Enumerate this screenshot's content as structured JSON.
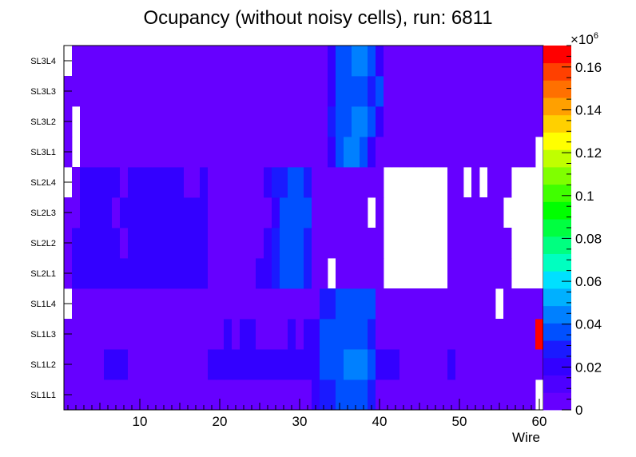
{
  "chart_data": {
    "type": "heatmap",
    "title": "Ocupancy (without noisy cells), run: 6811",
    "xlabel": "Wire",
    "ylabel": "",
    "xlim": [
      0.5,
      60.5
    ],
    "x_ticks": [
      10,
      20,
      30,
      40,
      50,
      60
    ],
    "rows": [
      "SL1L1",
      "SL1L2",
      "SL1L3",
      "SL1L4",
      "SL2L1",
      "SL2L2",
      "SL2L3",
      "SL2L4",
      "SL3L1",
      "SL3L2",
      "SL3L3",
      "SL3L4"
    ],
    "colorbar": {
      "min": 0,
      "max": 0.17,
      "exponent_label": "×10",
      "exponent_power": "6",
      "ticks": [
        0,
        0.02,
        0.04,
        0.06,
        0.08,
        0.1,
        0.12,
        0.14,
        0.16
      ],
      "tick_labels": [
        "0",
        "0.02",
        "0.04",
        "0.06",
        "0.08",
        "0.1",
        "0.12",
        "0.14",
        "0.16"
      ],
      "palette": [
        "#6600ff",
        "#4d00ff",
        "#3300ff",
        "#1a1aff",
        "#0050ff",
        "#0080ff",
        "#00b0ff",
        "#00e0ff",
        "#00ffc0",
        "#00ff80",
        "#00ff40",
        "#00ff00",
        "#40ff00",
        "#80ff00",
        "#c0ff00",
        "#ffff00",
        "#ffd000",
        "#ffa000",
        "#ff7000",
        "#ff4000",
        "#ff0000"
      ]
    },
    "legend": "colorbar-right",
    "values": [
      [
        0.008,
        0.008,
        0.008,
        0.008,
        0.008,
        0.008,
        0.008,
        0.008,
        0.008,
        0.008,
        0.008,
        0.008,
        0.008,
        0.008,
        0.008,
        0.008,
        0.008,
        0.008,
        0.008,
        0.008,
        0.008,
        0.008,
        0.008,
        0.008,
        0.008,
        0.008,
        0.008,
        0.008,
        0.008,
        0.008,
        0.008,
        0.018,
        0.025,
        0.025,
        0.035,
        0.035,
        0.035,
        0.035,
        0.025,
        0.008,
        0.008,
        0.008,
        0.008,
        0.008,
        0.008,
        0.008,
        0.008,
        0.008,
        0.008,
        0.008,
        0.008,
        0.008,
        0.008,
        0.008,
        0.008,
        0.008,
        0.008,
        0.008,
        0.008,
        0
      ],
      [
        0.008,
        0.008,
        0.008,
        0.008,
        0.008,
        0.018,
        0.018,
        0.018,
        0.008,
        0.008,
        0.008,
        0.008,
        0.008,
        0.008,
        0.008,
        0.008,
        0.008,
        0.008,
        0.018,
        0.018,
        0.018,
        0.018,
        0.018,
        0.018,
        0.018,
        0.018,
        0.018,
        0.018,
        0.018,
        0.018,
        0.018,
        0.018,
        0.035,
        0.035,
        0.035,
        0.045,
        0.045,
        0.045,
        0.035,
        0.018,
        0.018,
        0.018,
        0.008,
        0.008,
        0.008,
        0.008,
        0.008,
        0.008,
        0.018,
        0.008,
        0.008,
        0.008,
        0.008,
        0.008,
        0.008,
        0.008,
        0.008,
        0.008,
        0.008,
        0.008
      ],
      [
        0.008,
        0.008,
        0.008,
        0.008,
        0.008,
        0.008,
        0.008,
        0.008,
        0.008,
        0.008,
        0.008,
        0.008,
        0.008,
        0.008,
        0.008,
        0.008,
        0.008,
        0.008,
        0.008,
        0.008,
        0.018,
        0.008,
        0.018,
        0.018,
        0.008,
        0.008,
        0.008,
        0.008,
        0.018,
        0.008,
        0.018,
        0.018,
        0.035,
        0.035,
        0.035,
        0.035,
        0.035,
        0.035,
        0.025,
        0.008,
        0.008,
        0.008,
        0.008,
        0.008,
        0.008,
        0.008,
        0.008,
        0.008,
        0.008,
        0.008,
        0.008,
        0.008,
        0.008,
        0.008,
        0.008,
        0.008,
        0.008,
        0.008,
        0.008,
        0.17
      ],
      [
        0,
        0.008,
        0.008,
        0.008,
        0.008,
        0.008,
        0.008,
        0.008,
        0.008,
        0.008,
        0.008,
        0.008,
        0.008,
        0.008,
        0.008,
        0.008,
        0.008,
        0.008,
        0.008,
        0.008,
        0.008,
        0.008,
        0.008,
        0.008,
        0.008,
        0.008,
        0.008,
        0.008,
        0.008,
        0.008,
        0.008,
        0.008,
        0.025,
        0.025,
        0.035,
        0.035,
        0.035,
        0.035,
        0.035,
        0.008,
        0.008,
        0.008,
        0.008,
        0.008,
        0.008,
        0.008,
        0.008,
        0.008,
        0.008,
        0.008,
        0.008,
        0.008,
        0.008,
        0.008,
        0,
        0.008,
        0.008,
        0.008,
        0.008,
        0.008
      ],
      [
        0.008,
        0.018,
        0.018,
        0.018,
        0.018,
        0.018,
        0.018,
        0.018,
        0.018,
        0.018,
        0.018,
        0.018,
        0.018,
        0.018,
        0.018,
        0.018,
        0.018,
        0.018,
        0.008,
        0.008,
        0.008,
        0.008,
        0.008,
        0.008,
        0.018,
        0.018,
        0.025,
        0.035,
        0.035,
        0.035,
        0.025,
        0.008,
        0.008,
        0,
        0.008,
        0.008,
        0.008,
        0.008,
        0.008,
        0.008,
        0,
        0,
        0,
        0,
        0,
        0,
        0,
        0,
        0.008,
        0.008,
        0.008,
        0.008,
        0.008,
        0.008,
        0.008,
        0.008,
        0,
        0,
        0,
        0
      ],
      [
        0.008,
        0.018,
        0.018,
        0.018,
        0.018,
        0.018,
        0.018,
        0.008,
        0.018,
        0.018,
        0.018,
        0.018,
        0.018,
        0.018,
        0.018,
        0.018,
        0.018,
        0.018,
        0.008,
        0.008,
        0.008,
        0.008,
        0.008,
        0.008,
        0.008,
        0.018,
        0.025,
        0.035,
        0.035,
        0.035,
        0.025,
        0.008,
        0.008,
        0.008,
        0.008,
        0.008,
        0.008,
        0.008,
        0.008,
        0.008,
        0,
        0,
        0,
        0,
        0,
        0,
        0,
        0,
        0.008,
        0.008,
        0.008,
        0.008,
        0.008,
        0.008,
        0.008,
        0.008,
        0,
        0,
        0,
        0
      ],
      [
        0.008,
        0.008,
        0.018,
        0.018,
        0.018,
        0.018,
        0.008,
        0.018,
        0.018,
        0.018,
        0.018,
        0.018,
        0.018,
        0.018,
        0.018,
        0.018,
        0.018,
        0.018,
        0.008,
        0.008,
        0.008,
        0.008,
        0.008,
        0.008,
        0.008,
        0.008,
        0.018,
        0.035,
        0.035,
        0.035,
        0.035,
        0.008,
        0.008,
        0.008,
        0.008,
        0.008,
        0.008,
        0.008,
        0,
        0.008,
        0,
        0,
        0,
        0,
        0,
        0,
        0,
        0,
        0.008,
        0.008,
        0.008,
        0.008,
        0.008,
        0.008,
        0.008,
        0,
        0,
        0,
        0,
        0
      ],
      [
        0,
        0.008,
        0.018,
        0.018,
        0.018,
        0.018,
        0.018,
        0.008,
        0.018,
        0.018,
        0.018,
        0.018,
        0.018,
        0.018,
        0.018,
        0.008,
        0.008,
        0.018,
        0.008,
        0.008,
        0.008,
        0.008,
        0.008,
        0.008,
        0.008,
        0.018,
        0.025,
        0.025,
        0.035,
        0.035,
        0.025,
        0.008,
        0.008,
        0.008,
        0.008,
        0.008,
        0.008,
        0.008,
        0.008,
        0.008,
        0,
        0,
        0,
        0,
        0,
        0,
        0,
        0,
        0.008,
        0.008,
        0,
        0.008,
        0,
        0.008,
        0.008,
        0.008,
        0,
        0,
        0,
        0
      ],
      [
        0.008,
        0,
        0.008,
        0.008,
        0.008,
        0.008,
        0.008,
        0.008,
        0.008,
        0.008,
        0.008,
        0.008,
        0.008,
        0.008,
        0.008,
        0.008,
        0.008,
        0.008,
        0.008,
        0.008,
        0.008,
        0.008,
        0.008,
        0.008,
        0.008,
        0.008,
        0.008,
        0.008,
        0.008,
        0.008,
        0.008,
        0.008,
        0.008,
        0.018,
        0.035,
        0.045,
        0.045,
        0.035,
        0.018,
        0.008,
        0.008,
        0.008,
        0.008,
        0.008,
        0.008,
        0.008,
        0.008,
        0.008,
        0.008,
        0.008,
        0.008,
        0.008,
        0.008,
        0.008,
        0.008,
        0.008,
        0.008,
        0.008,
        0.008,
        0
      ],
      [
        0.008,
        0,
        0.008,
        0.008,
        0.008,
        0.008,
        0.008,
        0.008,
        0.008,
        0.008,
        0.008,
        0.008,
        0.008,
        0.008,
        0.008,
        0.008,
        0.008,
        0.008,
        0.008,
        0.008,
        0.008,
        0.008,
        0.008,
        0.008,
        0.008,
        0.008,
        0.008,
        0.008,
        0.008,
        0.008,
        0.008,
        0.008,
        0.008,
        0.025,
        0.035,
        0.035,
        0.045,
        0.045,
        0.035,
        0.018,
        0.008,
        0.008,
        0.008,
        0.008,
        0.008,
        0.008,
        0.008,
        0.008,
        0.008,
        0.008,
        0.008,
        0.008,
        0.008,
        0.008,
        0.008,
        0.008,
        0.008,
        0.008,
        0.008,
        0.008
      ],
      [
        0.008,
        0.008,
        0.008,
        0.008,
        0.008,
        0.008,
        0.008,
        0.008,
        0.008,
        0.008,
        0.008,
        0.008,
        0.008,
        0.008,
        0.008,
        0.008,
        0.008,
        0.008,
        0.008,
        0.008,
        0.008,
        0.008,
        0.008,
        0.008,
        0.008,
        0.008,
        0.008,
        0.008,
        0.008,
        0.008,
        0.008,
        0.008,
        0.008,
        0.018,
        0.035,
        0.035,
        0.035,
        0.035,
        0.025,
        0.035,
        0.008,
        0.008,
        0.008,
        0.008,
        0.008,
        0.008,
        0.008,
        0.008,
        0.008,
        0.008,
        0.008,
        0.008,
        0.008,
        0.008,
        0.008,
        0.008,
        0.008,
        0.008,
        0.008,
        0.008
      ],
      [
        0,
        0.008,
        0.008,
        0.008,
        0.008,
        0.008,
        0.008,
        0.008,
        0.008,
        0.008,
        0.008,
        0.008,
        0.008,
        0.008,
        0.008,
        0.008,
        0.008,
        0.008,
        0.008,
        0.008,
        0.008,
        0.008,
        0.008,
        0.008,
        0.008,
        0.008,
        0.008,
        0.008,
        0.008,
        0.008,
        0.008,
        0.008,
        0.008,
        0.018,
        0.035,
        0.035,
        0.045,
        0.045,
        0.035,
        0.018,
        0.008,
        0.008,
        0.008,
        0.008,
        0.008,
        0.008,
        0.008,
        0.008,
        0.008,
        0.008,
        0.008,
        0.008,
        0.008,
        0.008,
        0.008,
        0.008,
        0.008,
        0.008,
        0.008,
        0.008
      ]
    ]
  }
}
